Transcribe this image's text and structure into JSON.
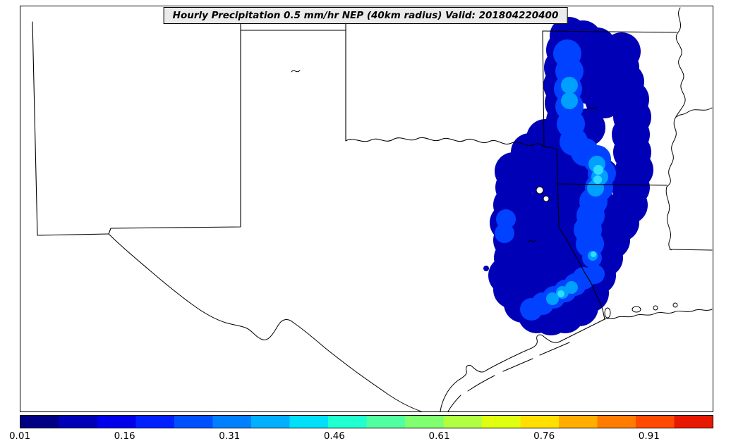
{
  "title": "Hourly Precipitation 0.5 mm/hr NEP (40km radius) Valid: 201804220400",
  "chart_data": {
    "type": "heatmap",
    "subtype": "filled-contour-probability-map",
    "title": "Hourly Precipitation 0.5 mm/hr NEP (40km radius) Valid: 201804220400",
    "variable": "Hourly Precipitation 0.5 mm/hr NEP",
    "neighborhood_radius": "40km",
    "valid": "201804220400",
    "legend_position": "bottom",
    "colorbar_ticks": [
      0.01,
      0.16,
      0.31,
      0.46,
      0.61,
      0.76,
      0.91
    ],
    "value_range": [
      0.01,
      1.0
    ],
    "contour_levels_shown": [
      {
        "threshold": 0.01,
        "color": "#0000b6"
      },
      {
        "threshold": 0.16,
        "color": "#0042ff"
      },
      {
        "threshold": 0.31,
        "color": "#00a0ff"
      },
      {
        "threshold": 0.46,
        "color": "#30ddff"
      }
    ]
  },
  "colorbar": {
    "min": 0.01,
    "max": 1.0,
    "ticks": [
      "0.01",
      "0.16",
      "0.31",
      "0.46",
      "0.61",
      "0.76",
      "0.91"
    ],
    "band_colors": [
      "#000085",
      "#0000b8",
      "#0000eb",
      "#0020ff",
      "#0050ff",
      "#0080ff",
      "#00b0ff",
      "#00e0f8",
      "#20ffd0",
      "#50ffa0",
      "#80ff70",
      "#b0ff40",
      "#e0ff10",
      "#ffe000",
      "#ffae00",
      "#ff7c00",
      "#ff4a00",
      "#e81800"
    ]
  },
  "map": {
    "line_color": "#000000",
    "background": "#ffffff"
  }
}
